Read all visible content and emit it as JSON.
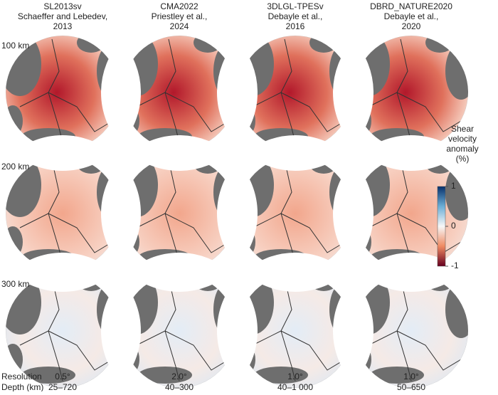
{
  "columns": [
    {
      "name": "SL2013sv",
      "reference": [
        "Schaeffer and Lebedev,",
        "2013"
      ],
      "resolution": "0.5°",
      "depth": "25–720"
    },
    {
      "name": "CMA2022",
      "reference": [
        "Priestley et al.,",
        "2024"
      ],
      "resolution": "2.0°",
      "depth": "40–300"
    },
    {
      "name": "3DLGL-TPESv",
      "reference": [
        "Debayle et al.,",
        "2016"
      ],
      "resolution": "1.0°",
      "depth": "40–1 000"
    },
    {
      "name": "DBRD_NATURE2020",
      "reference": [
        "Debayle et al.,",
        "2020"
      ],
      "resolution": "1.0°",
      "depth": "50–650"
    }
  ],
  "rows": [
    "100 km",
    "200 km",
    "300 km"
  ],
  "footer": {
    "resolution_label": "Resolution",
    "depth_label": "Depth (km)"
  },
  "colorbar": {
    "title": [
      "Shear",
      "velocity",
      "anomaly",
      "(%)"
    ],
    "lim": [
      -1,
      1
    ],
    "ticks": [
      1,
      0,
      -1
    ]
  }
}
